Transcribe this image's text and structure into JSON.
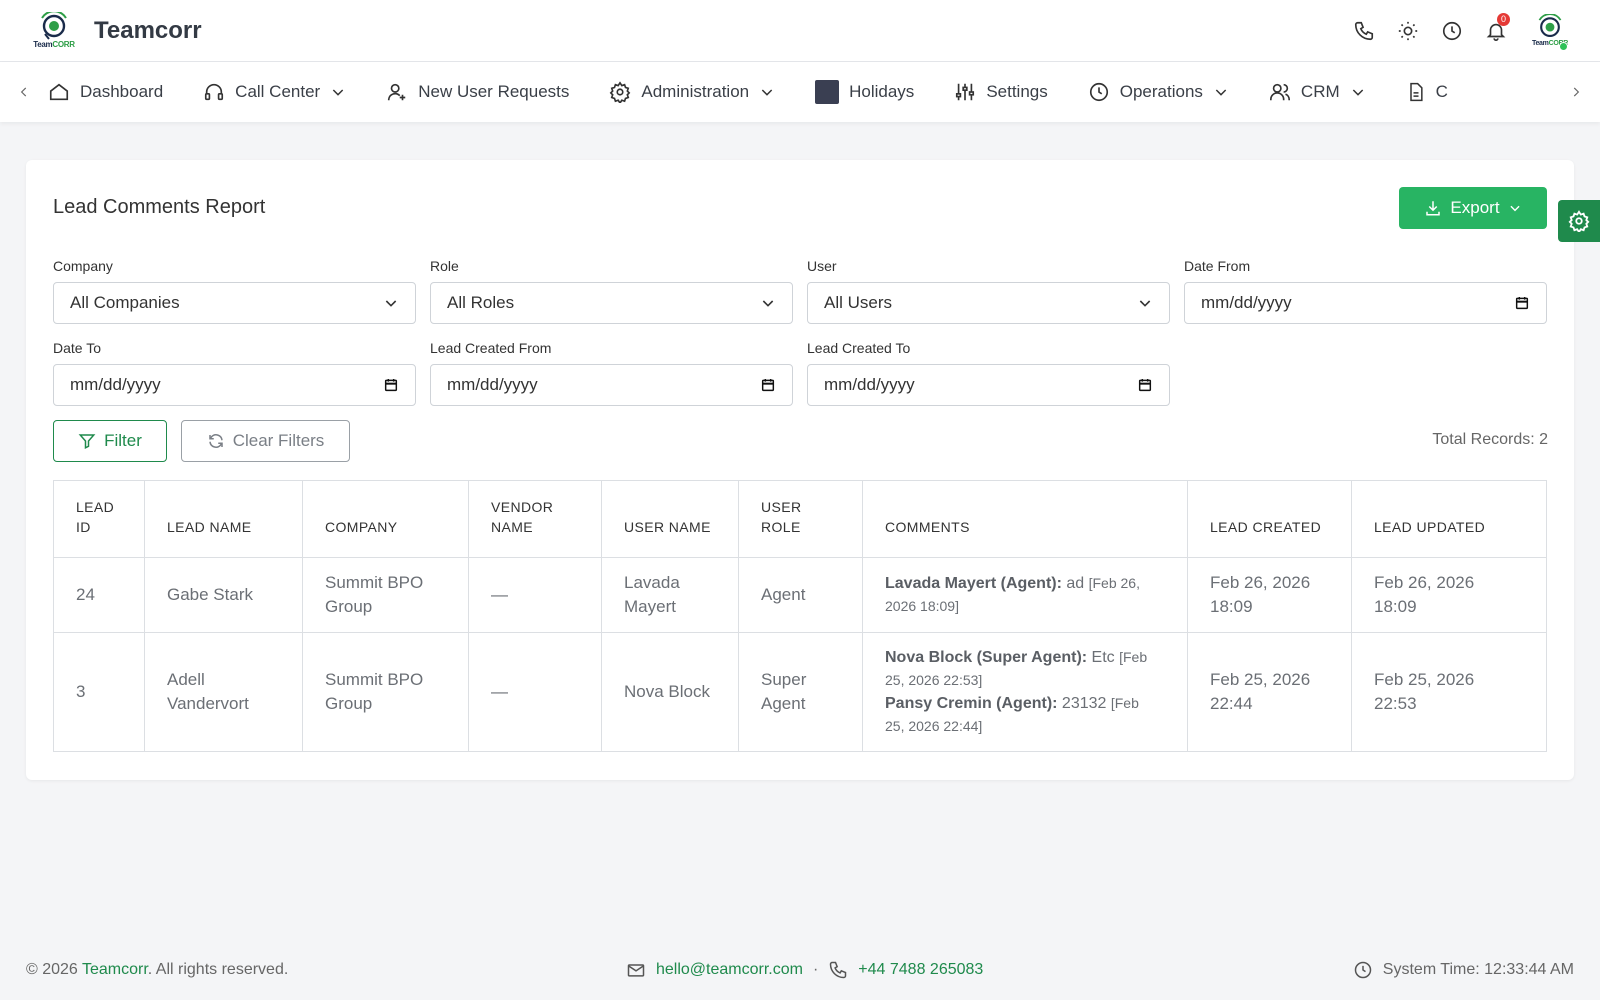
{
  "header": {
    "logo": {
      "text_a": "Team",
      "text_b": "CORR"
    },
    "brand": "Teamcorr",
    "notifications_count": "0"
  },
  "nav": {
    "items": [
      {
        "label": "Dashboard",
        "icon": "home-icon"
      },
      {
        "label": "Call Center",
        "icon": "headset-icon",
        "dropdown": true
      },
      {
        "label": "New User Requests",
        "icon": "user-plus-icon"
      },
      {
        "label": "Administration",
        "icon": "gear-icon",
        "dropdown": true
      },
      {
        "label": "Holidays",
        "icon": "holiday-box-icon"
      },
      {
        "label": "Settings",
        "icon": "sliders-icon"
      },
      {
        "label": "Operations",
        "icon": "clock-icon",
        "dropdown": true
      },
      {
        "label": "CRM",
        "icon": "users-icon",
        "dropdown": true
      },
      {
        "label": "C",
        "icon": "document-icon"
      }
    ]
  },
  "report": {
    "title": "Lead Comments Report",
    "export_label": "Export",
    "filters": {
      "company": {
        "label": "Company",
        "value": "All Companies"
      },
      "role": {
        "label": "Role",
        "value": "All Roles"
      },
      "user": {
        "label": "User",
        "value": "All Users"
      },
      "date_from": {
        "label": "Date From",
        "value": "mm/dd/yyyy"
      },
      "date_to": {
        "label": "Date To",
        "value": "mm/dd/yyyy"
      },
      "lead_created_from": {
        "label": "Lead Created From",
        "value": "mm/dd/yyyy"
      },
      "lead_created_to": {
        "label": "Lead Created To",
        "value": "mm/dd/yyyy"
      }
    },
    "filter_label": "Filter",
    "clear_label": "Clear Filters",
    "total_records": "Total Records: 2",
    "columns": {
      "lead_id": [
        "LEAD",
        "ID"
      ],
      "lead_name": "LEAD NAME",
      "company": "COMPANY",
      "vendor_name": [
        "VENDOR",
        "NAME"
      ],
      "user_name": "USER NAME",
      "user_role": "USER ROLE",
      "comments": "COMMENTS",
      "lead_created": "LEAD CREATED",
      "lead_updated": "LEAD UPDATED"
    },
    "rows": [
      {
        "lead_id": "24",
        "lead_name": [
          "Gabe Stark"
        ],
        "company": [
          "Summit BPO",
          "Group"
        ],
        "vendor_name": "—",
        "user_name": [
          "Lavada",
          "Mayert"
        ],
        "user_role": [
          "Agent"
        ],
        "comments": [
          {
            "author": "Lavada Mayert (Agent):",
            "text": " ad ",
            "ts_a": "[Feb 26,",
            "ts_b": "2026 18:09]"
          }
        ],
        "lead_created": [
          "Feb 26, 2026",
          "18:09"
        ],
        "lead_updated": [
          "Feb 26, 2026",
          "18:09"
        ]
      },
      {
        "lead_id": "3",
        "lead_name": [
          "Adell",
          "Vandervort"
        ],
        "company": [
          "Summit BPO",
          "Group"
        ],
        "vendor_name": "—",
        "user_name": [
          "Nova Block"
        ],
        "user_role": [
          "Super",
          "Agent"
        ],
        "comments": [
          {
            "author": "Nova Block (Super Agent):",
            "text": " Etc ",
            "ts_a": "[Feb",
            "ts_b": "25, 2026 22:53]"
          },
          {
            "author": "Pansy Cremin (Agent):",
            "text": " 23132 ",
            "ts_a": "[Feb",
            "ts_b": "25, 2026 22:44]"
          }
        ],
        "lead_created": [
          "Feb 25, 2026",
          "22:44"
        ],
        "lead_updated": [
          "Feb 25, 2026",
          "22:53"
        ]
      }
    ]
  },
  "footer": {
    "copyright_prefix": "© 2026 ",
    "copyright_brand": "Teamcorr",
    "copyright_suffix": ". All rights reserved.",
    "email": "hello@teamcorr.com",
    "separator": "·",
    "phone": "+44 7488 265083",
    "system_time": "System Time: 12:33:44 AM"
  },
  "colors": {
    "accent_green": "#28b463",
    "dark_green": "#1f8a4c",
    "badge_red": "#e53935"
  }
}
